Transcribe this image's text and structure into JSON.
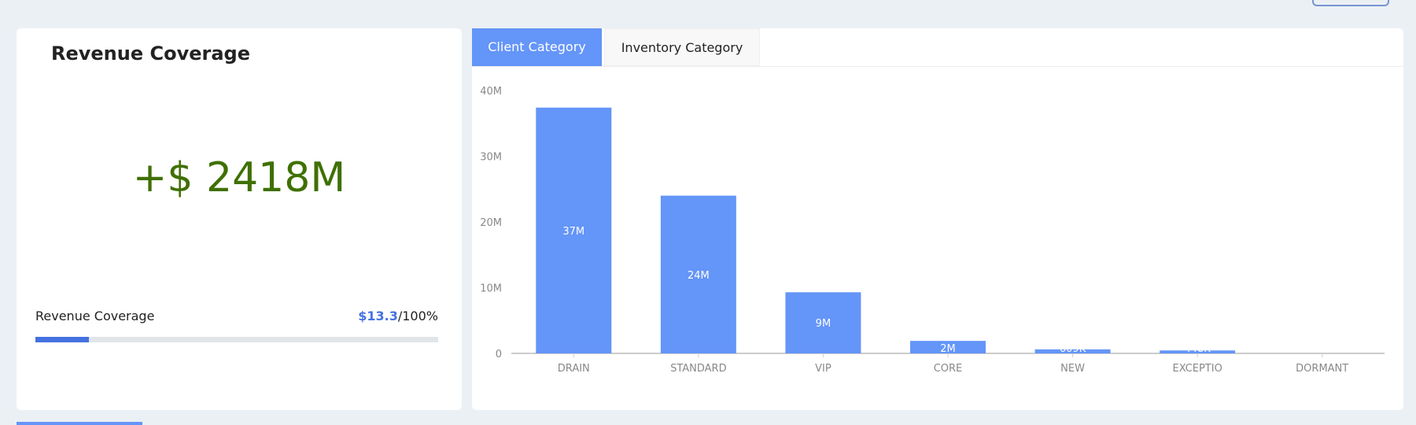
{
  "revenue_card": {
    "title": "Revenue Coverage",
    "amount": "+$ 2418M",
    "amount_color": "#3f7000",
    "progress_label": "Revenue Coverage",
    "progress_value": "$13.3",
    "progress_total": "/100%",
    "progress_percent": 13.3,
    "accent": "#4472e0"
  },
  "tabs": [
    {
      "label": "Client Category",
      "active": true
    },
    {
      "label": "Inventory Category",
      "active": false
    }
  ],
  "chart_data": {
    "type": "bar",
    "categories": [
      "DRAIN",
      "STANDARD",
      "VIP",
      "CORE",
      "NEW",
      "EXCEPTIO",
      "DORMANT"
    ],
    "values": [
      37400000,
      24000000,
      9300000,
      1900000,
      609000,
      448000,
      0
    ],
    "data_labels": [
      "37M",
      "24M",
      "9M",
      "2M",
      "609K",
      "448K",
      ""
    ],
    "yticks": [
      "0",
      "10M",
      "20M",
      "30M",
      "40M"
    ],
    "ylim": [
      0,
      40000000
    ],
    "color": "#6495f8",
    "grid": false
  }
}
